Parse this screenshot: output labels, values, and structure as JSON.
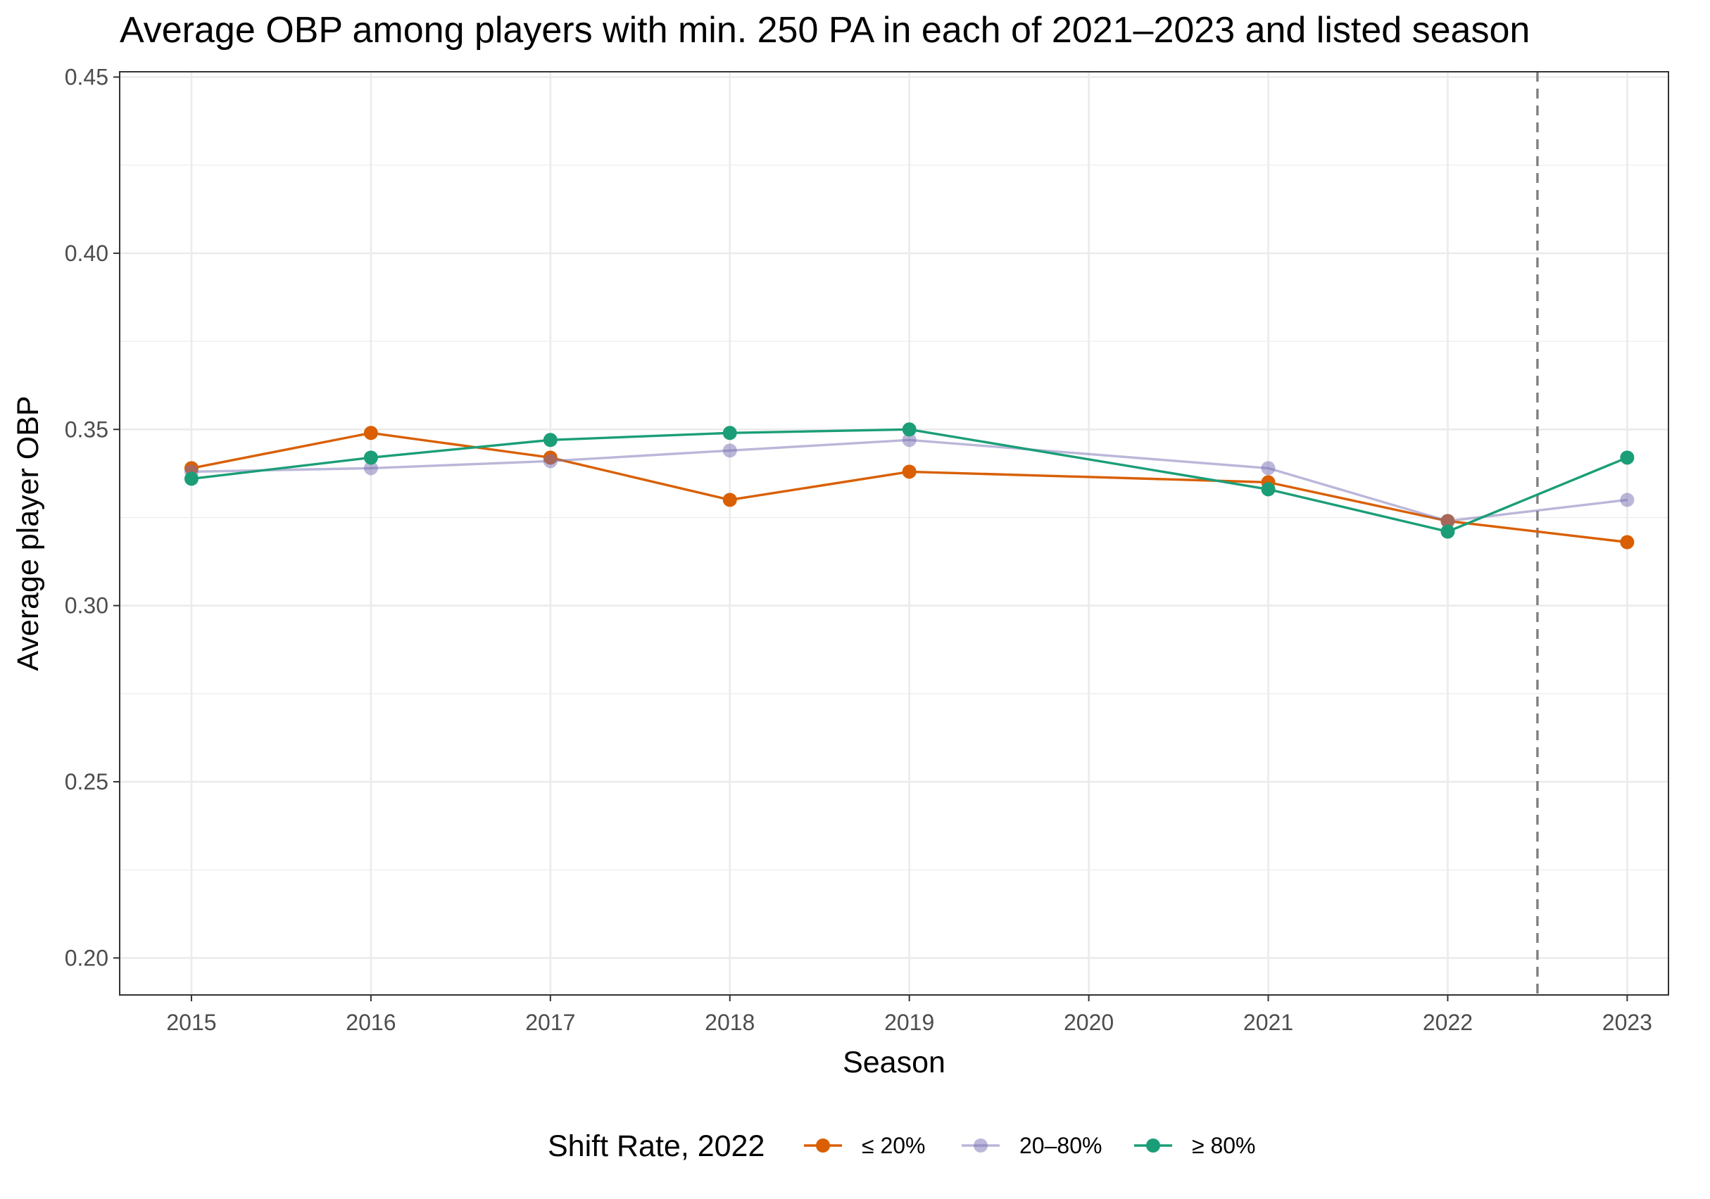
{
  "chart_data": {
    "type": "line",
    "title": "Average OBP among players with min. 250 PA in each of 2021–2023 and listed season",
    "xlabel": "Season",
    "ylabel": "Average player OBP",
    "x": [
      2015,
      2016,
      2017,
      2018,
      2019,
      2020,
      2021,
      2022,
      2023
    ],
    "x_tick_labels": [
      "2015",
      "2016",
      "2017",
      "2018",
      "2019",
      "2020",
      "2021",
      "2022",
      "2023"
    ],
    "xlim": [
      2014.6,
      2023.23
    ],
    "ylim": [
      0.1895,
      0.4515
    ],
    "y_ticks": [
      0.2,
      0.25,
      0.3,
      0.35,
      0.4,
      0.45
    ],
    "y_tick_labels": [
      "0.20",
      "0.25",
      "0.30",
      "0.35",
      "0.40",
      "0.45"
    ],
    "grid": true,
    "reference_line": {
      "x": 2022.5,
      "style": "dashed",
      "color": "#7f7f7f"
    },
    "legend": {
      "title": "Shift Rate, 2022",
      "position": "bottom"
    },
    "series": [
      {
        "name": "≤ 20%",
        "color": "#D95F02",
        "alpha": 1,
        "points": [
          {
            "x": 2015,
            "y": 0.339
          },
          {
            "x": 2016,
            "y": 0.349
          },
          {
            "x": 2017,
            "y": 0.342
          },
          {
            "x": 2018,
            "y": 0.33
          },
          {
            "x": 2019,
            "y": 0.338
          },
          {
            "x": 2021,
            "y": 0.335
          },
          {
            "x": 2022,
            "y": 0.324
          },
          {
            "x": 2023,
            "y": 0.318
          }
        ]
      },
      {
        "name": "20–80%",
        "color": "#7570B3",
        "alpha": 0.5,
        "points": [
          {
            "x": 2015,
            "y": 0.338
          },
          {
            "x": 2016,
            "y": 0.339
          },
          {
            "x": 2017,
            "y": 0.341
          },
          {
            "x": 2018,
            "y": 0.344
          },
          {
            "x": 2019,
            "y": 0.347
          },
          {
            "x": 2021,
            "y": 0.339
          },
          {
            "x": 2022,
            "y": 0.324
          },
          {
            "x": 2023,
            "y": 0.33
          }
        ]
      },
      {
        "name": "≥ 80%",
        "color": "#1B9E77",
        "alpha": 1,
        "points": [
          {
            "x": 2015,
            "y": 0.336
          },
          {
            "x": 2016,
            "y": 0.342
          },
          {
            "x": 2017,
            "y": 0.347
          },
          {
            "x": 2018,
            "y": 0.349
          },
          {
            "x": 2019,
            "y": 0.35
          },
          {
            "x": 2021,
            "y": 0.333
          },
          {
            "x": 2022,
            "y": 0.321
          },
          {
            "x": 2023,
            "y": 0.342
          }
        ]
      }
    ]
  }
}
